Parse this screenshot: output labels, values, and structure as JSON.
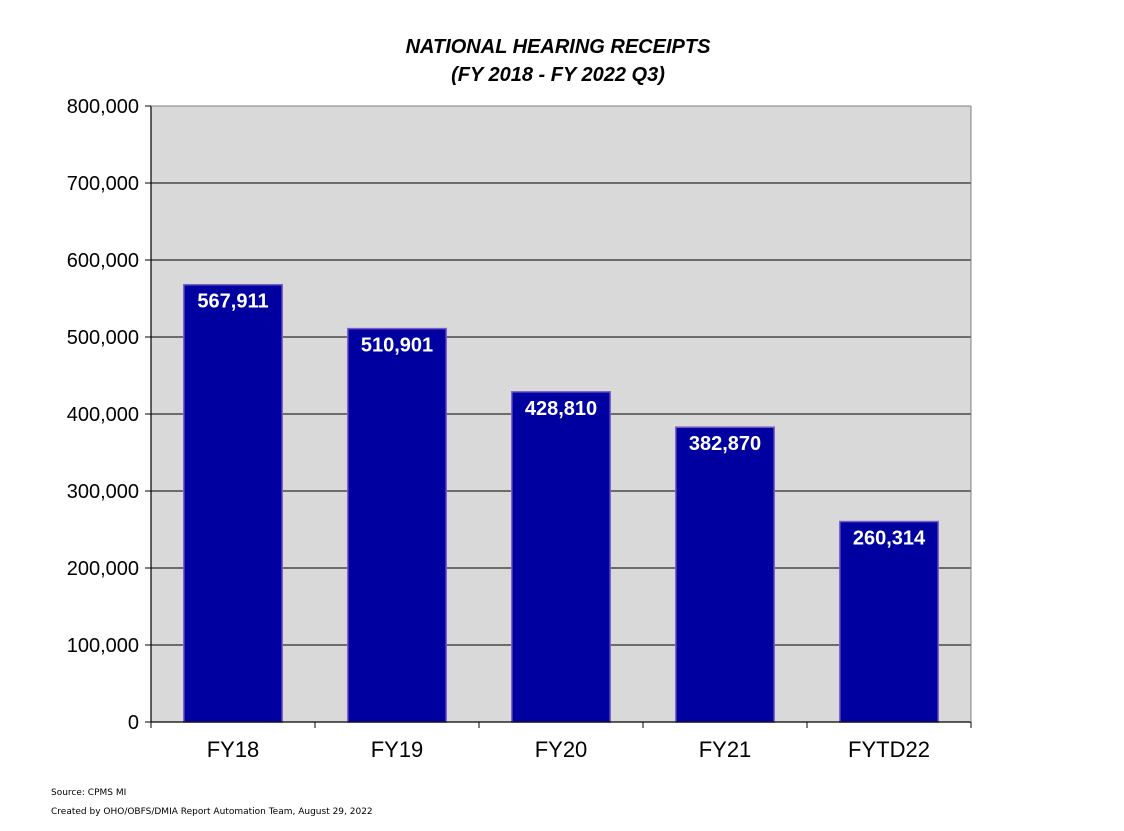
{
  "chart_data": {
    "type": "bar",
    "title": "NATIONAL HEARING RECEIPTS",
    "subtitle": "(FY 2018 - FY 2022 Q3)",
    "categories": [
      "FY18",
      "FY19",
      "FY20",
      "FY21",
      "FYTD22"
    ],
    "values": [
      567911,
      510901,
      428810,
      382870,
      260314
    ],
    "value_labels": [
      "567,911",
      "510,901",
      "428,810",
      "382,870",
      "260,314"
    ],
    "ylim": [
      0,
      800000
    ],
    "yticks": [
      0,
      100000,
      200000,
      300000,
      400000,
      500000,
      600000,
      700000,
      800000
    ],
    "ytick_labels": [
      "0",
      "100,000",
      "200,000",
      "300,000",
      "400,000",
      "500,000",
      "600,000",
      "700,000",
      "800,000"
    ],
    "xlabel": "",
    "ylabel": "",
    "grid": true,
    "legend": "none",
    "colors": {
      "bar": "#0000A0",
      "bar_edge": "#7B5CC7",
      "plot_background": "#D9D9D9",
      "gridline": "#000000",
      "data_label": "#FFFFFF"
    }
  },
  "footer": {
    "source": "Source: CPMS MI",
    "created_by": "Created by OHO/OBFS/DMIA Report Automation Team, August 29, 2022"
  }
}
